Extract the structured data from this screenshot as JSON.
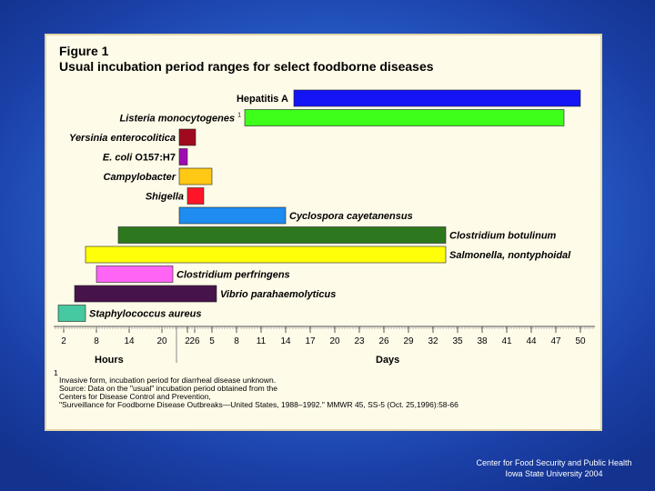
{
  "chart_data": {
    "type": "bar",
    "orientation": "horizontal-range",
    "title": "Figure 1",
    "subtitle": "Usual incubation period ranges for select foodborne diseases",
    "axis": {
      "hours_label": "Hours",
      "days_label": "Days",
      "hour_ticks": [
        "2",
        "8",
        "14",
        "20",
        "26"
      ],
      "day_ticks": [
        "2",
        "5",
        "8",
        "11",
        "14",
        "17",
        "20",
        "23",
        "26",
        "29",
        "32",
        "35",
        "38",
        "41",
        "44",
        "47",
        "50"
      ]
    },
    "series": [
      {
        "name": "Hepatitis A",
        "label_prefix": "",
        "label_suffix": "",
        "italic": false,
        "unit": "days",
        "start": 15,
        "end": 50,
        "color": "#1414f5"
      },
      {
        "name": "Listeria monocytogenes",
        "label_prefix": "",
        "label_suffix": "1",
        "italic": true,
        "unit": "days",
        "start": 9,
        "end": 48,
        "color": "#3dff1a"
      },
      {
        "name": "Yersinia enterocolitica",
        "label_prefix": "",
        "label_suffix": "",
        "italic": true,
        "unit": "days",
        "start": 1,
        "end": 3,
        "color": "#a00a1e"
      },
      {
        "name": "O157:H7",
        "label_prefix": "E. coli ",
        "label_suffix": "",
        "italic": false,
        "unit": "days",
        "start": 1,
        "end": 2,
        "color": "#a00ab4"
      },
      {
        "name": "Campylobacter",
        "label_prefix": "",
        "label_suffix": "",
        "italic": true,
        "unit": "days",
        "start": 1,
        "end": 5,
        "color": "#ffc814"
      },
      {
        "name": "Shigella",
        "label_prefix": "",
        "label_suffix": "",
        "italic": true,
        "unit": "days",
        "start": 2,
        "end": 4,
        "color": "#ff1428"
      },
      {
        "name": "Cyclospora cayetanensus",
        "label_prefix": "",
        "label_suffix": "",
        "italic": true,
        "unit": "days",
        "start": 1,
        "end": 14,
        "color": "#1e8cf0"
      },
      {
        "name": "Clostridium botulinum",
        "label_prefix": "",
        "label_suffix": "",
        "italic": true,
        "unit": "hours",
        "start": 12,
        "end": 72,
        "color": "#2d781e"
      },
      {
        "name": "Salmonella, nontyphoidal",
        "label_prefix": "",
        "label_suffix": "",
        "italic": true,
        "unit": "hours",
        "start": 6,
        "end": 72,
        "color": "#ffff0a"
      },
      {
        "name": "Clostridium perfringens",
        "label_prefix": "",
        "label_suffix": "",
        "italic": true,
        "unit": "hours",
        "start": 8,
        "end": 22,
        "color": "#ff64f5"
      },
      {
        "name": "Vibrio parahaemolyticus",
        "label_prefix": "",
        "label_suffix": "",
        "italic": true,
        "unit": "hours",
        "start": 4,
        "end": 30,
        "color": "#46144b"
      },
      {
        "name": "Staphylococcus aureus",
        "label_prefix": "",
        "label_suffix": "",
        "italic": true,
        "unit": "hours",
        "start": 1,
        "end": 6,
        "color": "#46c8a0"
      }
    ],
    "footnotes": [
      "1",
      "Invasive form, incubation period for diarrheal disease unknown.",
      "Source:  Data on the \"usual\" incubation period obtained from the",
      "Centers for Disease Control and Prevention,",
      "\"Surveillance for Foodborne Disease Outbreaks—United States, 1988–1992.\"   MMWR 45, SS-5 (Oct. 25,1996):58-66"
    ]
  },
  "credit": {
    "line1": "Center for Food Security and Public Health",
    "line2": "Iowa State University 2004"
  }
}
